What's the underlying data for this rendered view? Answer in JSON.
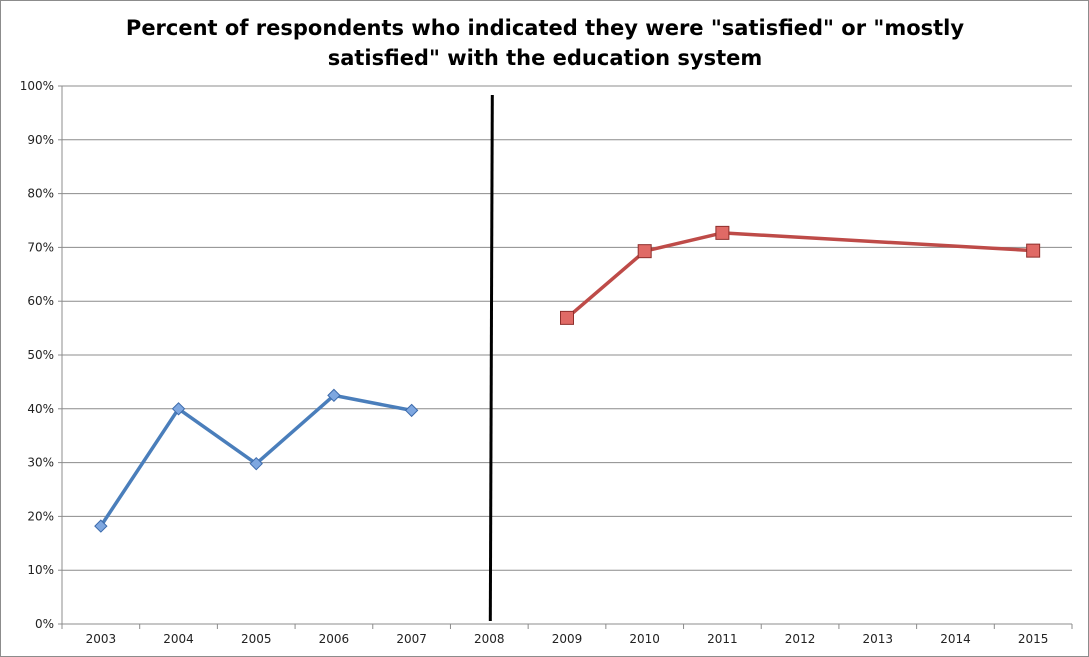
{
  "chart_data": {
    "type": "line",
    "title_lines": [
      "Percent of respondents who indicated they were \"satisfied\" or \"mostly",
      "satisfied\" with the education system"
    ],
    "xlabel": "",
    "ylabel": "",
    "categories": [
      "2003",
      "2004",
      "2005",
      "2006",
      "2007",
      "2008",
      "2009",
      "2010",
      "2011",
      "2012",
      "2013",
      "2014",
      "2015"
    ],
    "ylim": [
      0,
      100
    ],
    "ytick_labels": [
      "0%",
      "10%",
      "20%",
      "30%",
      "40%",
      "50%",
      "60%",
      "70%",
      "80%",
      "90%",
      "100%"
    ],
    "grid": true,
    "legend": "none",
    "divider_at": "2008",
    "series": [
      {
        "color": "#4a7ebb",
        "marker": "diamond",
        "points": [
          {
            "x": "2003",
            "y": 18.2
          },
          {
            "x": "2004",
            "y": 40.0
          },
          {
            "x": "2005",
            "y": 29.8
          },
          {
            "x": "2006",
            "y": 42.5
          },
          {
            "x": "2007",
            "y": 39.7
          }
        ]
      },
      {
        "color": "#be4b48",
        "marker": "square",
        "points": [
          {
            "x": "2009",
            "y": 56.9
          },
          {
            "x": "2010",
            "y": 69.3
          },
          {
            "x": "2011",
            "y": 72.7
          },
          {
            "x": "2015",
            "y": 69.4
          }
        ]
      }
    ]
  }
}
